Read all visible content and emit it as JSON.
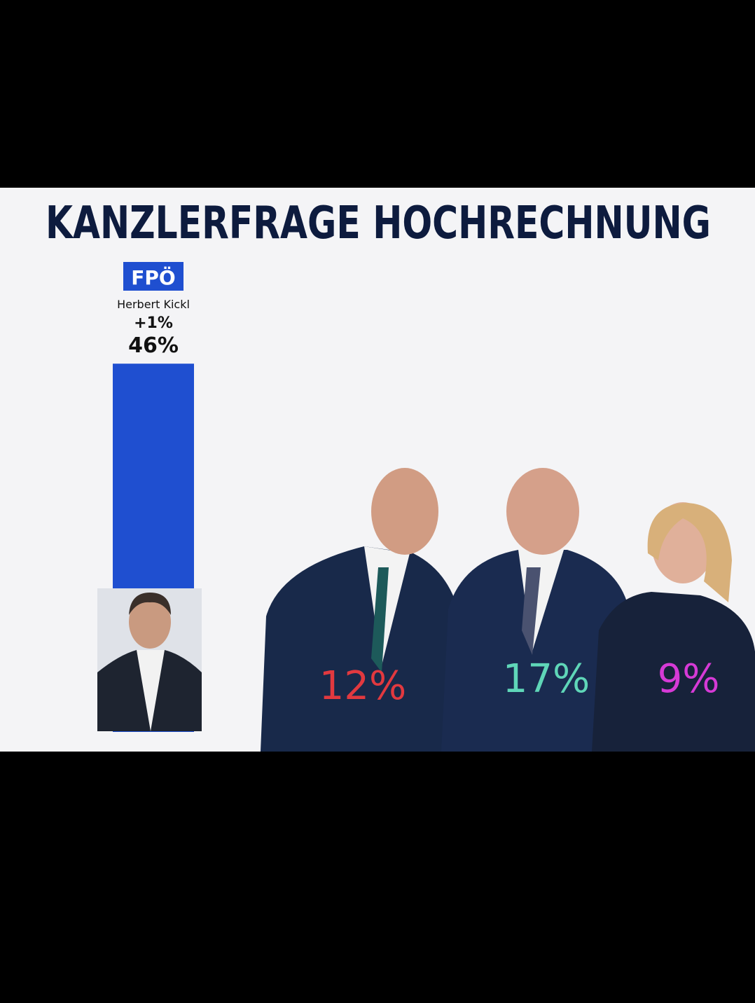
{
  "title": "KANZLERFRAGE HOCHRECHNUNG",
  "leader": {
    "party": "FPÖ",
    "candidate": "Herbert Kickl",
    "change": "+1%",
    "value": 46,
    "value_label": "46%",
    "color": "#1f4fd0"
  },
  "others": [
    {
      "value_label": "12%",
      "color": "#e2393f"
    },
    {
      "value_label": "17%",
      "color": "#5fd6b8"
    },
    {
      "value_label": "9%",
      "color": "#d63ad6"
    }
  ]
}
